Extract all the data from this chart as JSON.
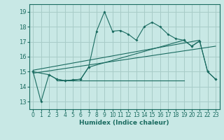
{
  "xlabel": "Humidex (Indice chaleur)",
  "bg_color": "#c8e8e5",
  "line_color": "#1a6b60",
  "grid_color": "#a8ccc8",
  "xlim": [
    -0.5,
    23.5
  ],
  "ylim": [
    12.5,
    19.5
  ],
  "xticks": [
    0,
    1,
    2,
    3,
    4,
    5,
    6,
    7,
    8,
    9,
    10,
    11,
    12,
    13,
    14,
    15,
    16,
    17,
    18,
    19,
    20,
    21,
    22,
    23
  ],
  "yticks": [
    13,
    14,
    15,
    16,
    17,
    18,
    19
  ],
  "series1_x": [
    0,
    1,
    2,
    3,
    4,
    5,
    6,
    7,
    8,
    9,
    10,
    11,
    12,
    13,
    14,
    15,
    16,
    17,
    18,
    19,
    20,
    21,
    22,
    23
  ],
  "series1_y": [
    15.0,
    13.0,
    14.8,
    14.5,
    14.4,
    14.45,
    14.5,
    15.3,
    17.7,
    19.0,
    17.7,
    17.75,
    17.5,
    17.1,
    18.0,
    18.3,
    18.0,
    17.5,
    17.2,
    17.1,
    16.7,
    17.05,
    15.0,
    14.5
  ],
  "series2_x": [
    0,
    2,
    3,
    4,
    5,
    6,
    7,
    19,
    20,
    21,
    22,
    23
  ],
  "series2_y": [
    15.0,
    14.8,
    14.5,
    14.4,
    14.45,
    14.5,
    15.3,
    17.1,
    16.7,
    17.05,
    15.0,
    14.5
  ],
  "trend1_x": [
    0,
    21
  ],
  "trend1_y": [
    15.1,
    17.1
  ],
  "trend2_x": [
    0,
    23
  ],
  "trend2_y": [
    14.9,
    16.7
  ],
  "flatline_x": [
    3,
    19
  ],
  "flatline_y": [
    14.4,
    14.4
  ]
}
